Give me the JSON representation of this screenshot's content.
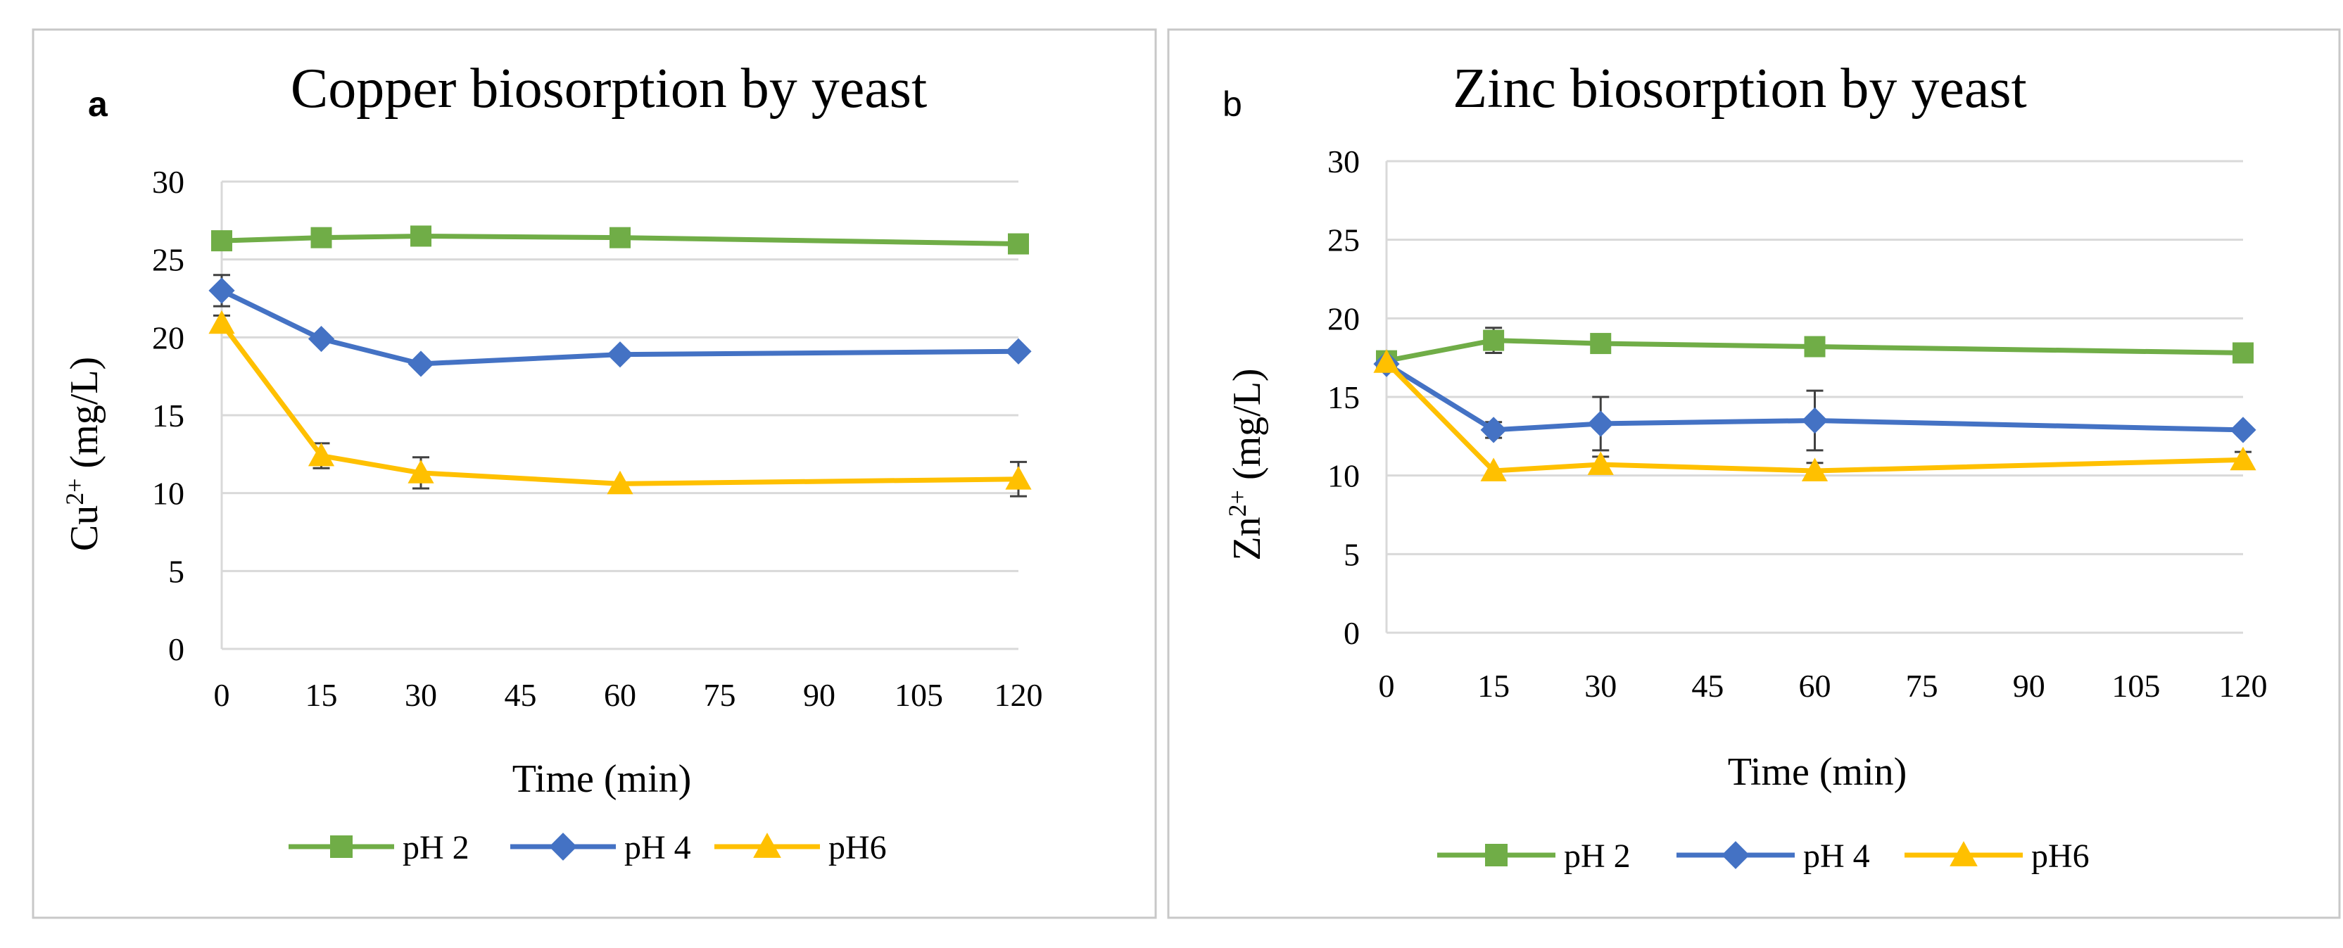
{
  "charts": [
    {
      "panel_label": "a",
      "title": "Copper biosorption by yeast",
      "xlabel": "Time (min)",
      "ylabel_base": "Cu",
      "ylabel_sup": "2+",
      "ylabel_unit": "(mg/L)",
      "x_ticks": [
        "0",
        "15",
        "30",
        "45",
        "60",
        "75",
        "90",
        "105",
        "120"
      ],
      "y_ticks": [
        "0",
        "5",
        "10",
        "15",
        "20",
        "25",
        "30"
      ]
    },
    {
      "panel_label": "b",
      "title": "Zinc biosorption by yeast",
      "xlabel": "Time (min)",
      "ylabel_base": "Zn",
      "ylabel_sup": "2+",
      "ylabel_unit": "(mg/L)",
      "x_ticks": [
        "0",
        "15",
        "30",
        "45",
        "60",
        "75",
        "90",
        "105",
        "120"
      ],
      "y_ticks": [
        "0",
        "5",
        "10",
        "15",
        "20",
        "25",
        "30"
      ]
    }
  ],
  "chart_data": [
    {
      "type": "line",
      "title": "Copper biosorption by yeast",
      "xlabel": "Time (min)",
      "ylabel": "Cu2+ (mg/L)",
      "xlim": [
        0,
        120
      ],
      "ylim": [
        0,
        30
      ],
      "x": [
        0,
        15,
        30,
        60,
        120
      ],
      "grid": true,
      "legend_position": "bottom",
      "series": [
        {
          "name": "pH 2",
          "color": "#70AD47",
          "marker": "square",
          "values": [
            26.2,
            26.4,
            26.5,
            26.4,
            26.0
          ],
          "errors": [
            0.3,
            0.3,
            0.3,
            0.3,
            0.3
          ]
        },
        {
          "name": "pH 4",
          "color": "#4472C4",
          "marker": "diamond",
          "values": [
            23.0,
            19.9,
            18.3,
            18.9,
            19.1
          ],
          "errors": [
            1.0,
            0.3,
            0.3,
            0.3,
            0.3
          ]
        },
        {
          "name": "pH6",
          "color": "#FFC000",
          "marker": "triangle",
          "values": [
            20.9,
            12.4,
            11.3,
            10.6,
            10.9
          ],
          "errors": [
            0.5,
            0.8,
            1.0,
            0.3,
            1.1
          ]
        }
      ]
    },
    {
      "type": "line",
      "title": "Zinc biosorption by yeast",
      "xlabel": "Time (min)",
      "ylabel": "Zn2+ (mg/L)",
      "xlim": [
        0,
        120
      ],
      "ylim": [
        0,
        30
      ],
      "x": [
        0,
        15,
        30,
        60,
        120
      ],
      "grid": true,
      "legend_position": "bottom",
      "series": [
        {
          "name": "pH 2",
          "color": "#70AD47",
          "marker": "square",
          "values": [
            17.3,
            18.6,
            18.4,
            18.2,
            17.8
          ],
          "errors": [
            0.3,
            0.8,
            0.3,
            0.3,
            0.3
          ]
        },
        {
          "name": "pH 4",
          "color": "#4472C4",
          "marker": "diamond",
          "values": [
            17.1,
            12.9,
            13.3,
            13.5,
            12.9
          ],
          "errors": [
            0.3,
            0.5,
            1.7,
            1.9,
            0.3
          ]
        },
        {
          "name": "pH6",
          "color": "#FFC000",
          "marker": "triangle",
          "values": [
            17.2,
            10.3,
            10.7,
            10.3,
            11.0
          ],
          "errors": [
            0.3,
            0.3,
            0.5,
            0.5,
            0.5
          ]
        }
      ]
    }
  ]
}
